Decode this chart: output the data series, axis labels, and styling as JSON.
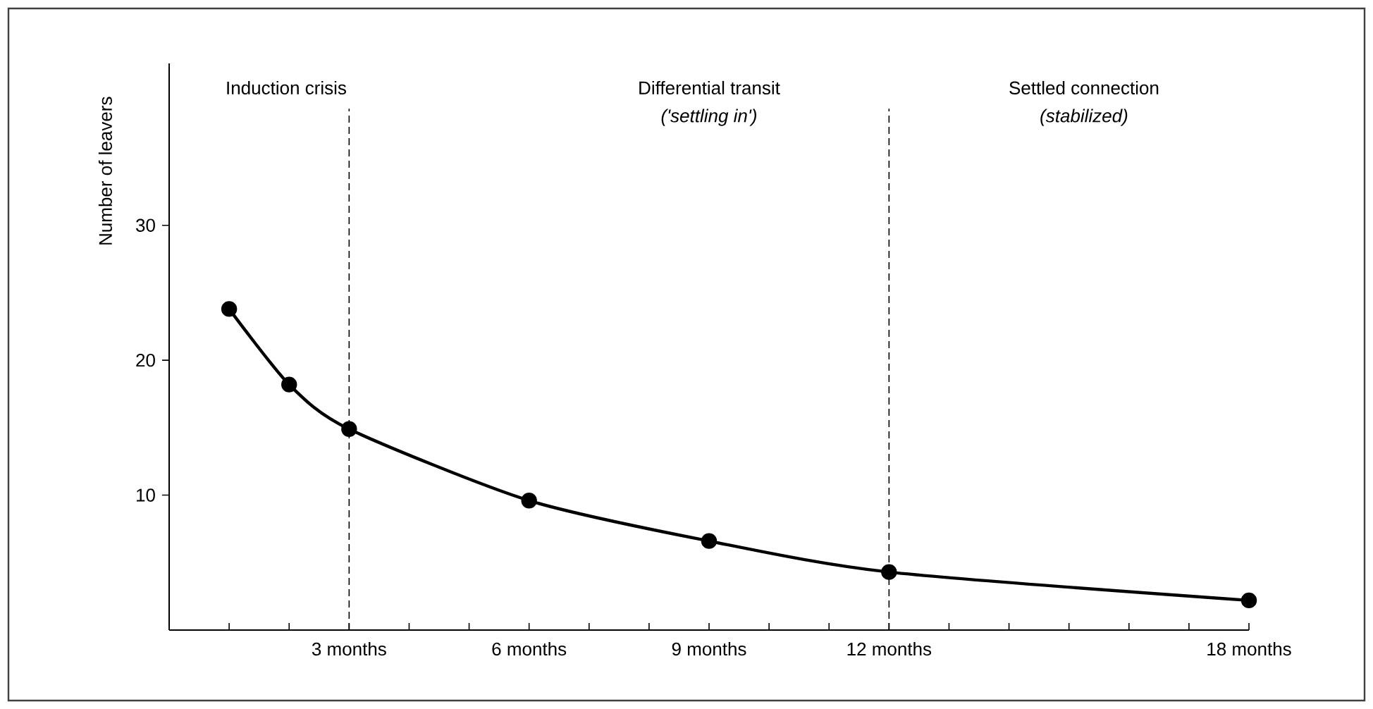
{
  "chart_data": {
    "type": "line",
    "ylabel": "Number of leavers",
    "annotations": [
      "Induction crisis",
      "Differential transit",
      "('settling in')",
      "Settled connection",
      "(stabilized)"
    ],
    "x": [
      1,
      2,
      3,
      6,
      9,
      12,
      18
    ],
    "series": [
      {
        "color": "#000000",
        "values": [
          23.8,
          18.2,
          14.9,
          9.6,
          6.6,
          4.3,
          2.2
        ]
      }
    ],
    "xlim": [
      0,
      18
    ],
    "ylim": [
      0,
      42
    ],
    "xticks": [
      {
        "value": 1,
        "label": null
      },
      {
        "value": 2,
        "label": null
      },
      {
        "value": 3,
        "label": "3 months"
      },
      {
        "value": 4,
        "label": null
      },
      {
        "value": 5,
        "label": null
      },
      {
        "value": 6,
        "label": "6 months"
      },
      {
        "value": 7,
        "label": null
      },
      {
        "value": 8,
        "label": null
      },
      {
        "value": 9,
        "label": "9 months"
      },
      {
        "value": 10,
        "label": null
      },
      {
        "value": 11,
        "label": null
      },
      {
        "value": 12,
        "label": "12 months"
      },
      {
        "value": 13,
        "label": null
      },
      {
        "value": 14,
        "label": null
      },
      {
        "value": 15,
        "label": null
      },
      {
        "value": 16,
        "label": null
      },
      {
        "value": 17,
        "label": null
      },
      {
        "value": 18,
        "label": "18 months"
      }
    ],
    "yticks": [
      10,
      20,
      30
    ],
    "ref_lines": [
      {
        "axis": "x",
        "value": 3,
        "line_style": "dashed"
      },
      {
        "axis": "x",
        "value": 12,
        "line_style": "dashed"
      }
    ],
    "grid": false,
    "marker": "circle",
    "line_style": "solid"
  }
}
